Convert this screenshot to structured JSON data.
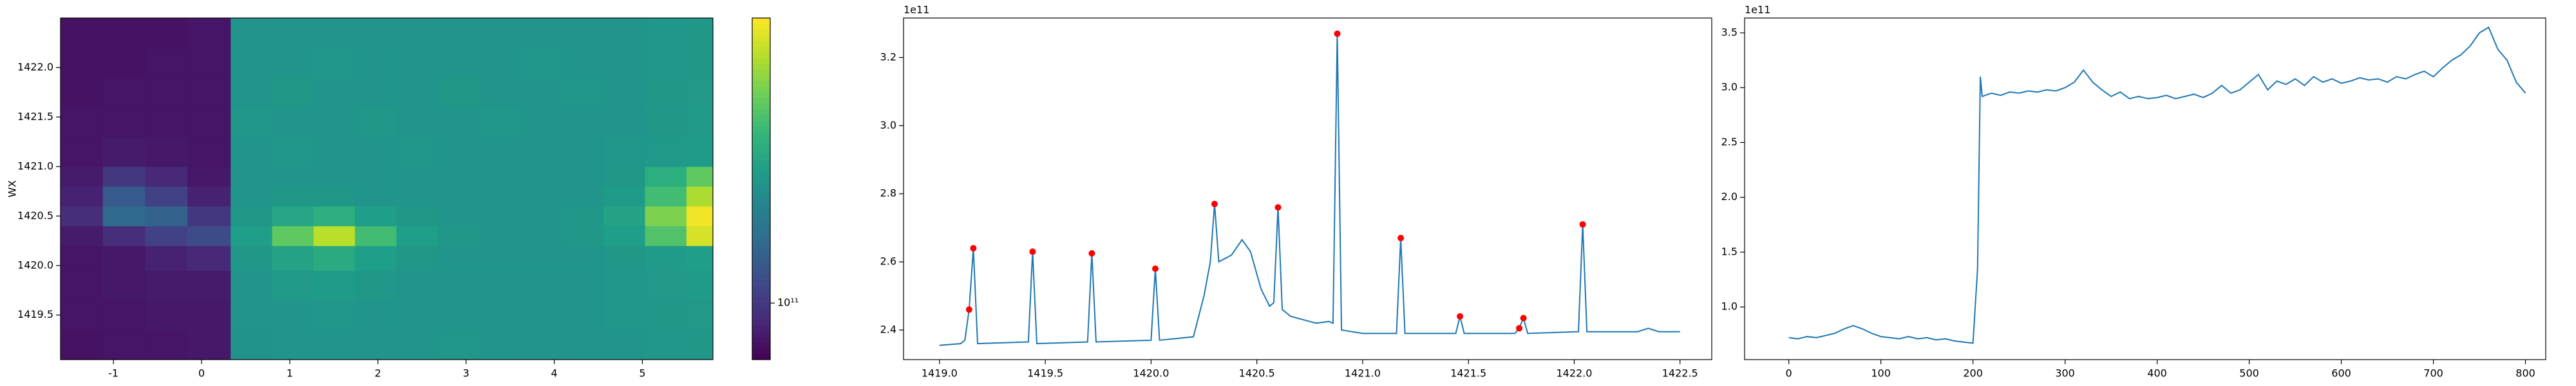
{
  "chart_data": [
    {
      "type": "heatmap",
      "y_label": "WX",
      "colormap": "viridis",
      "color_scale": "log",
      "clim": [
        78000000000.0,
        350000000000.0
      ],
      "cticks": [
        {
          "value": 100000000000.0,
          "label": "10¹¹"
        }
      ],
      "x_edges": [
        -1.6,
        -1.12,
        -0.64,
        -0.16,
        0.33,
        0.8,
        1.27,
        1.74,
        2.21,
        2.68,
        3.15,
        3.62,
        4.09,
        4.56,
        5.03,
        5.5,
        5.8
      ],
      "y_edges": [
        1419.05,
        1419.35,
        1419.65,
        1419.95,
        1420.2,
        1420.4,
        1420.6,
        1420.8,
        1421.0,
        1421.3,
        1421.6,
        1421.9,
        1422.2,
        1422.5
      ],
      "xlim": [
        -1.6,
        5.8
      ],
      "ylim": [
        1419.05,
        1422.5
      ],
      "xticks": [
        -1,
        0,
        1,
        2,
        3,
        4,
        5
      ],
      "yticks": [
        1419.5,
        {
          "value": 1420,
          "label": "1420.0"
        },
        1420.5,
        {
          "value": 1421,
          "label": "1421.0"
        },
        1421.5,
        {
          "value": 1422,
          "label": "1422.0"
        }
      ],
      "z": [
        [
          84000000000.0,
          85000000000.0,
          85000000000.0,
          86000000000.0,
          168000000000.0,
          170000000000.0,
          170000000000.0,
          169000000000.0,
          170000000000.0,
          171000000000.0,
          170000000000.0,
          169000000000.0,
          170000000000.0,
          170000000000.0,
          171000000000.0,
          172000000000.0
        ],
        [
          85000000000.0,
          85000000000.0,
          86000000000.0,
          86000000000.0,
          169000000000.0,
          170000000000.0,
          171000000000.0,
          170000000000.0,
          170000000000.0,
          170000000000.0,
          169000000000.0,
          170000000000.0,
          170000000000.0,
          171000000000.0,
          172000000000.0,
          173000000000.0
        ],
        [
          85000000000.0,
          86000000000.0,
          87000000000.0,
          87000000000.0,
          170000000000.0,
          174000000000.0,
          178000000000.0,
          172000000000.0,
          170000000000.0,
          170000000000.0,
          170000000000.0,
          170000000000.0,
          170000000000.0,
          171000000000.0,
          173000000000.0,
          175000000000.0
        ],
        [
          85000000000.0,
          86000000000.0,
          90000000000.0,
          92000000000.0,
          172000000000.0,
          185000000000.0,
          195000000000.0,
          180000000000.0,
          172000000000.0,
          170000000000.0,
          170000000000.0,
          170000000000.0,
          170000000000.0,
          172000000000.0,
          175000000000.0,
          180000000000.0
        ],
        [
          87000000000.0,
          95000000000.0,
          105000000000.0,
          110000000000.0,
          180000000000.0,
          240000000000.0,
          300000000000.0,
          220000000000.0,
          180000000000.0,
          172000000000.0,
          170000000000.0,
          170000000000.0,
          172000000000.0,
          180000000000.0,
          230000000000.0,
          320000000000.0
        ],
        [
          95000000000.0,
          130000000000.0,
          125000000000.0,
          100000000000.0,
          172000000000.0,
          190000000000.0,
          200000000000.0,
          180000000000.0,
          172000000000.0,
          170000000000.0,
          170000000000.0,
          170000000000.0,
          172000000000.0,
          185000000000.0,
          260000000000.0,
          340000000000.0
        ],
        [
          90000000000.0,
          120000000000.0,
          105000000000.0,
          90000000000.0,
          170000000000.0,
          172000000000.0,
          172000000000.0,
          170000000000.0,
          170000000000.0,
          170000000000.0,
          170000000000.0,
          170000000000.0,
          170000000000.0,
          178000000000.0,
          220000000000.0,
          290000000000.0
        ],
        [
          87000000000.0,
          100000000000.0,
          92000000000.0,
          86000000000.0,
          170000000000.0,
          170000000000.0,
          170000000000.0,
          170000000000.0,
          170000000000.0,
          170000000000.0,
          170000000000.0,
          170000000000.0,
          170000000000.0,
          172000000000.0,
          200000000000.0,
          240000000000.0
        ],
        [
          85000000000.0,
          87000000000.0,
          86000000000.0,
          85000000000.0,
          170000000000.0,
          171000000000.0,
          170000000000.0,
          170000000000.0,
          171000000000.0,
          170000000000.0,
          170000000000.0,
          170000000000.0,
          170000000000.0,
          171000000000.0,
          174000000000.0,
          178000000000.0
        ],
        [
          85000000000.0,
          85000000000.0,
          85000000000.0,
          85000000000.0,
          171000000000.0,
          170000000000.0,
          170000000000.0,
          172000000000.0,
          170000000000.0,
          170000000000.0,
          171000000000.0,
          170000000000.0,
          170000000000.0,
          170000000000.0,
          172000000000.0,
          174000000000.0
        ],
        [
          84000000000.0,
          85000000000.0,
          85000000000.0,
          85000000000.0,
          170000000000.0,
          172000000000.0,
          170000000000.0,
          170000000000.0,
          170000000000.0,
          172000000000.0,
          170000000000.0,
          170000000000.0,
          171000000000.0,
          170000000000.0,
          172000000000.0,
          173000000000.0
        ],
        [
          84000000000.0,
          84000000000.0,
          85000000000.0,
          85000000000.0,
          170000000000.0,
          170000000000.0,
          171000000000.0,
          170000000000.0,
          170000000000.0,
          170000000000.0,
          170000000000.0,
          171000000000.0,
          170000000000.0,
          170000000000.0,
          171000000000.0,
          172000000000.0
        ],
        [
          84000000000.0,
          84000000000.0,
          84000000000.0,
          85000000000.0,
          169000000000.0,
          170000000000.0,
          170000000000.0,
          170000000000.0,
          169000000000.0,
          170000000000.0,
          170000000000.0,
          170000000000.0,
          170000000000.0,
          170000000000.0,
          171000000000.0,
          172000000000.0
        ]
      ]
    },
    {
      "type": "line",
      "y_offset_label": "1e11",
      "xlim": [
        1418.83,
        1422.65
      ],
      "ylim": [
        2.313,
        3.316
      ],
      "xticks": [
        {
          "value": 1419,
          "label": "1419.0"
        },
        1419.5,
        {
          "value": 1420,
          "label": "1420.0"
        },
        1420.5,
        {
          "value": 1421,
          "label": "1421.0"
        },
        1421.5,
        {
          "value": 1422,
          "label": "1422.0"
        },
        1422.5
      ],
      "yticks": [
        2.4,
        2.6,
        2.8,
        {
          "value": 3,
          "label": "3.0"
        },
        3.2
      ],
      "series": [
        {
          "color": "#1f77b4",
          "style": "line",
          "x": [
            1419.0,
            1419.1,
            1419.12,
            1419.14,
            1419.16,
            1419.18,
            1419.42,
            1419.44,
            1419.46,
            1419.7,
            1419.72,
            1419.74,
            1420.0,
            1420.02,
            1420.04,
            1420.2,
            1420.25,
            1420.28,
            1420.3,
            1420.32,
            1420.38,
            1420.43,
            1420.47,
            1420.52,
            1420.56,
            1420.58,
            1420.6,
            1420.62,
            1420.66,
            1420.72,
            1420.78,
            1420.84,
            1420.86,
            1420.88,
            1420.9,
            1421.0,
            1421.16,
            1421.18,
            1421.2,
            1421.44,
            1421.46,
            1421.48,
            1421.72,
            1421.74,
            1421.76,
            1421.78,
            1422.02,
            1422.04,
            1422.06,
            1422.3,
            1422.35,
            1422.4,
            1422.5
          ],
          "values": [
            2.355,
            2.36,
            2.37,
            2.46,
            2.64,
            2.36,
            2.365,
            2.63,
            2.36,
            2.365,
            2.625,
            2.365,
            2.37,
            2.58,
            2.37,
            2.38,
            2.5,
            2.6,
            2.77,
            2.6,
            2.62,
            2.665,
            2.63,
            2.52,
            2.47,
            2.48,
            2.76,
            2.46,
            2.44,
            2.43,
            2.42,
            2.425,
            2.42,
            3.27,
            2.4,
            2.39,
            2.39,
            2.67,
            2.39,
            2.39,
            2.44,
            2.39,
            2.39,
            2.405,
            2.435,
            2.39,
            2.395,
            2.71,
            2.395,
            2.395,
            2.405,
            2.395,
            2.395
          ]
        },
        {
          "color": "red",
          "style": "markers",
          "x": [
            1419.14,
            1419.16,
            1419.44,
            1419.72,
            1420.02,
            1420.3,
            1420.6,
            1420.88,
            1421.18,
            1421.46,
            1421.74,
            1421.76,
            1422.04
          ],
          "values": [
            2.46,
            2.64,
            2.63,
            2.625,
            2.58,
            2.77,
            2.76,
            3.27,
            2.67,
            2.44,
            2.405,
            2.435,
            2.71
          ]
        }
      ]
    },
    {
      "type": "line",
      "y_offset_label": "1e11",
      "xlim": [
        -48,
        822
      ],
      "ylim": [
        0.52,
        3.635
      ],
      "xticks": [
        0,
        100,
        200,
        300,
        400,
        500,
        600,
        700,
        800
      ],
      "yticks": [
        {
          "value": 1,
          "label": "1.0"
        },
        1.5,
        {
          "value": 2,
          "label": "2.0"
        },
        2.5,
        {
          "value": 3,
          "label": "3.0"
        },
        3.5
      ],
      "series": [
        {
          "color": "#1f77b4",
          "style": "line",
          "x": [
            0,
            10,
            20,
            30,
            40,
            50,
            60,
            70,
            80,
            90,
            100,
            110,
            120,
            130,
            140,
            150,
            160,
            170,
            180,
            190,
            200,
            205,
            208,
            210,
            220,
            230,
            240,
            250,
            260,
            270,
            280,
            290,
            300,
            310,
            320,
            330,
            340,
            350,
            360,
            370,
            380,
            390,
            400,
            410,
            420,
            430,
            440,
            450,
            460,
            470,
            480,
            490,
            500,
            510,
            520,
            530,
            540,
            550,
            560,
            570,
            580,
            590,
            600,
            610,
            620,
            630,
            640,
            650,
            660,
            670,
            680,
            690,
            700,
            710,
            720,
            730,
            740,
            750,
            760,
            770,
            780,
            790,
            800
          ],
          "values": [
            0.72,
            0.71,
            0.73,
            0.72,
            0.74,
            0.76,
            0.8,
            0.83,
            0.8,
            0.76,
            0.73,
            0.72,
            0.71,
            0.73,
            0.71,
            0.72,
            0.7,
            0.71,
            0.69,
            0.68,
            0.67,
            1.35,
            3.1,
            2.92,
            2.95,
            2.93,
            2.96,
            2.95,
            2.97,
            2.96,
            2.98,
            2.97,
            3.0,
            3.05,
            3.16,
            3.05,
            2.98,
            2.92,
            2.96,
            2.9,
            2.92,
            2.9,
            2.91,
            2.93,
            2.9,
            2.92,
            2.94,
            2.91,
            2.95,
            3.02,
            2.95,
            2.98,
            3.05,
            3.12,
            2.98,
            3.06,
            3.03,
            3.08,
            3.02,
            3.1,
            3.05,
            3.08,
            3.04,
            3.06,
            3.09,
            3.07,
            3.08,
            3.05,
            3.1,
            3.08,
            3.12,
            3.15,
            3.1,
            3.18,
            3.25,
            3.3,
            3.38,
            3.5,
            3.55,
            3.35,
            3.25,
            3.05,
            2.95
          ]
        }
      ]
    }
  ]
}
